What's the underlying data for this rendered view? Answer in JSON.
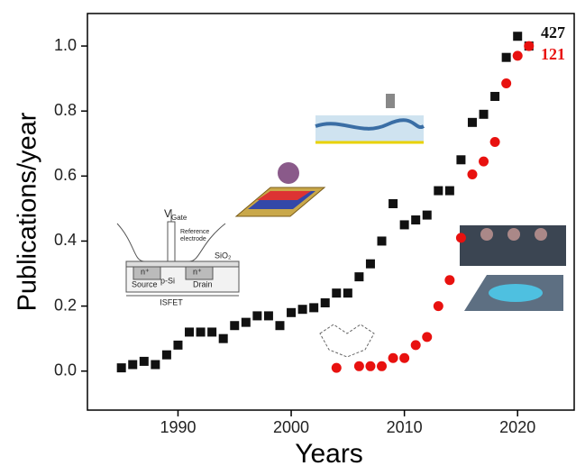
{
  "chart_data": {
    "type": "scatter",
    "xlabel": "Years",
    "ylabel": "Publications/year",
    "xlim": [
      1982,
      2025
    ],
    "ylim": [
      -0.12,
      1.1
    ],
    "xticks": [
      1990,
      2000,
      2010,
      2020
    ],
    "yticks": [
      {
        "value": 0,
        "label": "0.0"
      },
      0.2,
      0.4,
      0.6,
      0.8,
      {
        "value": 1,
        "label": "1.0"
      }
    ],
    "series": [
      {
        "color": "#111111",
        "marker": "square",
        "x": [
          1985,
          1986,
          1987,
          1988,
          1989,
          1990,
          1991,
          1992,
          1993,
          1994,
          1995,
          1996,
          1997,
          1998,
          1999,
          2000,
          2001,
          2002,
          2003,
          2004,
          2005,
          2006,
          2007,
          2008,
          2009,
          2010,
          2011,
          2012,
          2013,
          2014,
          2015,
          2016,
          2017,
          2018,
          2019,
          2020,
          2021
        ],
        "values": [
          0.01,
          0.02,
          0.03,
          0.02,
          0.05,
          0.08,
          0.12,
          0.12,
          0.12,
          0.1,
          0.14,
          0.15,
          0.17,
          0.17,
          0.14,
          0.18,
          0.19,
          0.195,
          0.21,
          0.24,
          0.24,
          0.29,
          0.33,
          0.4,
          0.515,
          0.45,
          0.465,
          0.48,
          0.555,
          0.555,
          0.65,
          0.765,
          0.79,
          0.845,
          0.965,
          1.03,
          1.0
        ]
      },
      {
        "color": "#e8110f",
        "marker": "circle",
        "x": [
          2004,
          2006,
          2007,
          2008,
          2009,
          2010,
          2011,
          2012,
          2013,
          2014,
          2015,
          2016,
          2017,
          2018,
          2019,
          2020,
          2021
        ],
        "values": [
          0.01,
          0.015,
          0.015,
          0.015,
          0.04,
          0.04,
          0.08,
          0.105,
          0.2,
          0.28,
          0.41,
          0.605,
          0.645,
          0.705,
          0.885,
          0.97,
          1.0
        ]
      }
    ],
    "annotations": [
      {
        "text": "427",
        "color": "#111111"
      },
      {
        "text": "121",
        "color": "#e8110f"
      }
    ]
  },
  "inset_isfet": {
    "v": "V",
    "gate": "Gate",
    "reference": "Reference",
    "electrode": "electrode",
    "sio2": "SiO₂",
    "n_left": "n⁺",
    "n_right": "n⁺",
    "source": "Source",
    "psi": "p-Si",
    "drain": "Drain",
    "caption": "ISFET"
  }
}
